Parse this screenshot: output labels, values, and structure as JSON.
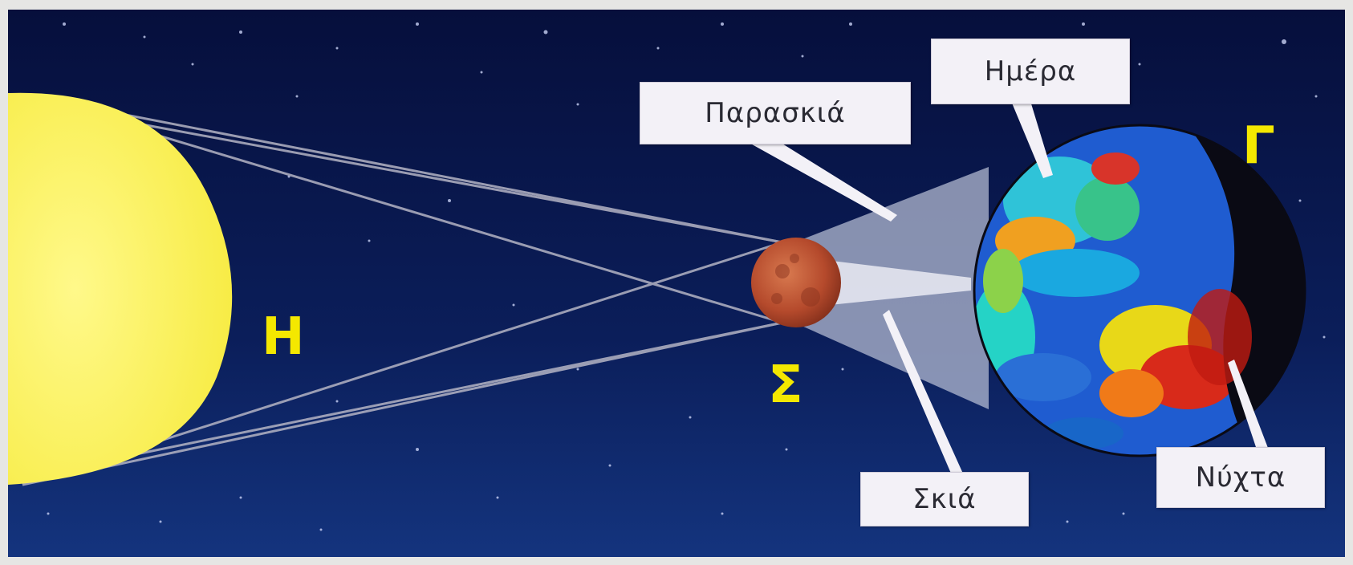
{
  "diagram": {
    "labels": {
      "sun": "Η",
      "moon": "Σ",
      "earth": "Γ"
    },
    "callouts": {
      "day": "Ημέρα",
      "penumbra": "Παρασκιά",
      "umbra": "Σκιά",
      "night": "Νύχτα"
    },
    "colors": {
      "space": "#0a1a4f",
      "sun": "#faf36a",
      "moon": "#b54a2c",
      "rays": "#b4b4c4",
      "label": "#f4e800"
    }
  }
}
